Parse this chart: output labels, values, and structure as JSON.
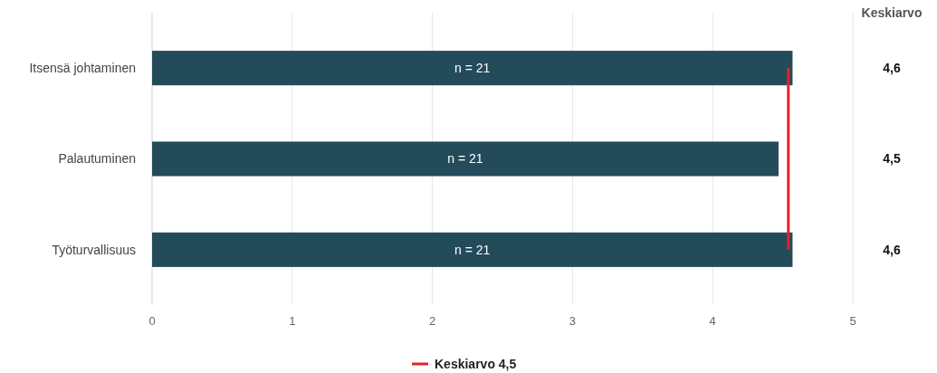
{
  "chart_data": {
    "type": "bar",
    "orientation": "horizontal",
    "categories": [
      "Itsensä johtaminen",
      "Palautuminen",
      "Työturvallisuus"
    ],
    "values": [
      4.57,
      4.47,
      4.57
    ],
    "value_labels": [
      "4,6",
      "4,5",
      "4,6"
    ],
    "color": "#234b5a",
    "xlim": [
      0,
      5
    ],
    "xticks": [
      0,
      1,
      2,
      3,
      4,
      5
    ],
    "grid": "x",
    "ref_lines": [
      {
        "axis": "x",
        "value": 4.54,
        "label": "Keskiarvo 4,5",
        "color": "#e8202a"
      }
    ],
    "annotations": [
      "Keskiarvo",
      "n = 21",
      "n = 21",
      "n = 21"
    ],
    "legend": "bottom"
  }
}
